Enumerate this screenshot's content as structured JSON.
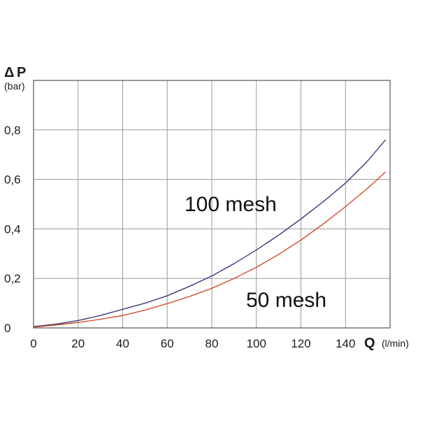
{
  "chart_data": {
    "type": "line",
    "y_symbol_delta": "Δ",
    "y_symbol": "P",
    "y_unit": "(bar)",
    "x_symbol": "Q",
    "x_unit": "(l/min)",
    "xlim": [
      0,
      160
    ],
    "ylim": [
      0,
      1.0
    ],
    "x_ticks": [
      0,
      20,
      40,
      60,
      80,
      100,
      120,
      140
    ],
    "x_tick_labels": [
      "0",
      "20",
      "40",
      "60",
      "80",
      "100",
      "120",
      "140"
    ],
    "y_ticks": [
      0,
      0.2,
      0.4,
      0.6,
      0.8
    ],
    "y_tick_labels": [
      "0",
      "0,2",
      "0,4",
      "0,6",
      "0,8"
    ],
    "grid": true,
    "series": [
      {
        "name": "100 mesh",
        "color": "#2b2b6e",
        "x": [
          0,
          10,
          20,
          30,
          40,
          50,
          60,
          70,
          80,
          90,
          100,
          110,
          120,
          130,
          140,
          150,
          158
        ],
        "y": [
          0.005,
          0.015,
          0.03,
          0.05,
          0.075,
          0.1,
          0.13,
          0.168,
          0.21,
          0.26,
          0.315,
          0.375,
          0.44,
          0.51,
          0.585,
          0.675,
          0.76
        ]
      },
      {
        "name": "50 mesh",
        "color": "#d2421f",
        "x": [
          0,
          10,
          20,
          30,
          40,
          50,
          60,
          70,
          80,
          90,
          100,
          110,
          120,
          130,
          140,
          150,
          158
        ],
        "y": [
          0.003,
          0.012,
          0.022,
          0.035,
          0.05,
          0.072,
          0.098,
          0.127,
          0.16,
          0.2,
          0.245,
          0.297,
          0.355,
          0.42,
          0.49,
          0.565,
          0.63
        ]
      }
    ]
  }
}
